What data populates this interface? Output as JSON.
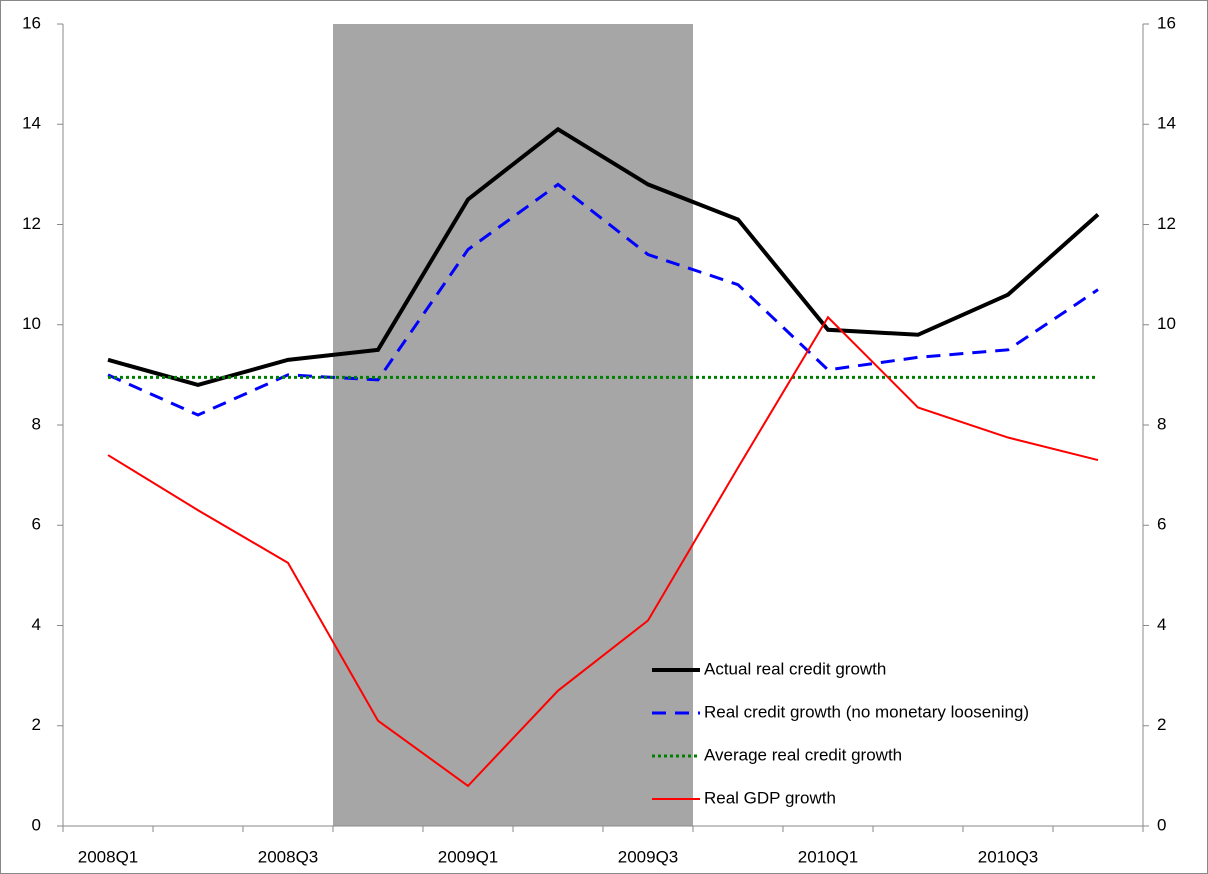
{
  "chart_data": {
    "type": "line",
    "categories": [
      "2008Q1",
      null,
      "2008Q3",
      null,
      "2009Q1",
      null,
      "2009Q3",
      null,
      "2010Q1",
      null,
      "2010Q3",
      null
    ],
    "series": [
      {
        "name": "Actual real credit growth",
        "color": "#000000",
        "style": "solid",
        "values": [
          9.3,
          8.8,
          9.3,
          9.5,
          12.5,
          13.9,
          12.8,
          12.1,
          9.9,
          9.8,
          10.6,
          12.2
        ]
      },
      {
        "name": "Real credit growth (no monetary loosening)",
        "color": "#0000ff",
        "style": "dashed",
        "values": [
          9.0,
          8.2,
          9.0,
          8.9,
          11.5,
          12.8,
          11.4,
          10.8,
          9.1,
          9.35,
          9.5,
          10.7
        ]
      },
      {
        "name": "Average real credit growth",
        "color": "#008000",
        "style": "dotted",
        "values": [
          8.95,
          8.95,
          8.95,
          8.95,
          8.95,
          8.95,
          8.95,
          8.95,
          8.95,
          8.95,
          8.95,
          8.95
        ]
      },
      {
        "name": "Real GDP growth",
        "color": "#ff0000",
        "style": "thin",
        "values": [
          7.4,
          6.3,
          5.25,
          2.1,
          0.8,
          2.7,
          4.1,
          7.15,
          10.15,
          8.35,
          7.75,
          7.3
        ]
      }
    ],
    "ylim": [
      0,
      16
    ],
    "yticks": [
      0,
      2,
      4,
      6,
      8,
      10,
      12,
      14,
      16
    ],
    "y2lim": [
      0,
      16
    ],
    "y2ticks": [
      0,
      2,
      4,
      6,
      8,
      10,
      12,
      14,
      16
    ],
    "grid": false
  }
}
